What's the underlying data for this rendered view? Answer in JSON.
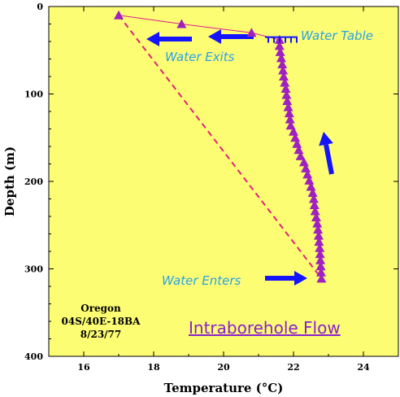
{
  "colors": {
    "plot_bg": "#fdfd73",
    "marker": "#a020c0",
    "thin_line": "#e0208a",
    "dashed_line": "#e0207a",
    "arrow": "#1414ff",
    "annotation": "#2aa0e8",
    "title": "#8a1fcf"
  },
  "chart_data": {
    "type": "scatter",
    "title": "Intraborehole Flow",
    "xlabel": "Temperature (°C)",
    "ylabel": "Depth (m)",
    "xlim": [
      15,
      25
    ],
    "ylim": [
      400,
      0
    ],
    "x_ticks": [
      16,
      18,
      20,
      22,
      24
    ],
    "y_ticks": [
      0,
      100,
      200,
      300,
      400
    ],
    "grid": false,
    "series": [
      {
        "marker": "triangle",
        "points": [
          [
            17.0,
            10
          ],
          [
            18.8,
            20
          ],
          [
            20.8,
            30
          ],
          [
            21.6,
            38
          ],
          [
            21.6,
            45
          ],
          [
            21.62,
            52
          ],
          [
            21.65,
            59
          ],
          [
            21.68,
            66
          ],
          [
            21.7,
            73
          ],
          [
            21.72,
            80
          ],
          [
            21.75,
            87
          ],
          [
            21.78,
            94
          ],
          [
            21.8,
            101
          ],
          [
            21.82,
            108
          ],
          [
            21.85,
            115
          ],
          [
            21.88,
            122
          ],
          [
            21.9,
            129
          ],
          [
            21.92,
            136
          ],
          [
            22.0,
            143
          ],
          [
            22.05,
            150
          ],
          [
            22.1,
            157
          ],
          [
            22.15,
            164
          ],
          [
            22.2,
            171
          ],
          [
            22.3,
            178
          ],
          [
            22.35,
            185
          ],
          [
            22.4,
            192
          ],
          [
            22.45,
            199
          ],
          [
            22.5,
            206
          ],
          [
            22.55,
            213
          ],
          [
            22.58,
            220
          ],
          [
            22.6,
            227
          ],
          [
            22.62,
            234
          ],
          [
            22.65,
            241
          ],
          [
            22.68,
            248
          ],
          [
            22.7,
            255
          ],
          [
            22.72,
            262
          ],
          [
            22.73,
            269
          ],
          [
            22.75,
            276
          ],
          [
            22.76,
            283
          ],
          [
            22.77,
            290
          ],
          [
            22.78,
            297
          ],
          [
            22.79,
            304
          ],
          [
            22.8,
            311
          ]
        ]
      }
    ],
    "solid_line": [
      [
        17.0,
        10
      ],
      [
        18.8,
        20
      ],
      [
        20.8,
        30
      ],
      [
        21.6,
        38
      ]
    ],
    "dashed_line": [
      [
        17.0,
        10
      ],
      [
        22.8,
        311
      ]
    ],
    "water_table_depth": 35,
    "annotations": {
      "water_table": "Water Table",
      "water_exits": "Water Exits",
      "water_enters": "Water Enters",
      "location": [
        "Oregon",
        "04S/40E-18BA",
        "8/23/77"
      ]
    }
  }
}
